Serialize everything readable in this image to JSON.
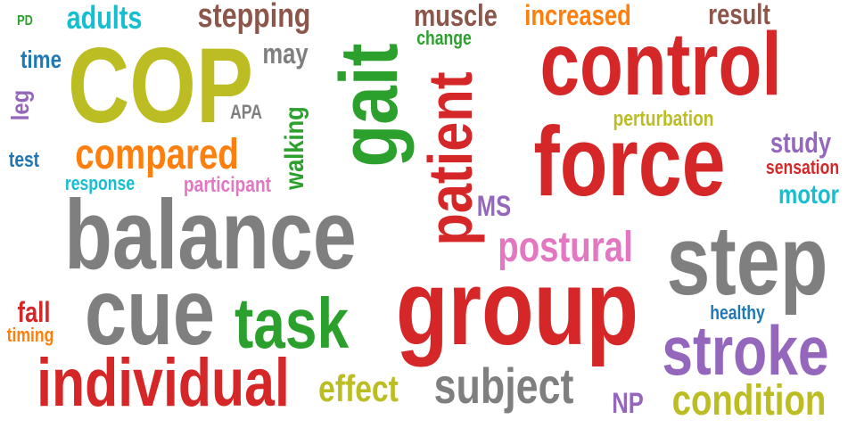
{
  "word_cloud": {
    "words": [
      {
        "text": "PD",
        "color": "#2ca02c",
        "orientation": "horizontal"
      },
      {
        "text": "adults",
        "color": "#17becf",
        "orientation": "horizontal"
      },
      {
        "text": "stepping",
        "color": "#8c564b",
        "orientation": "horizontal"
      },
      {
        "text": "muscle",
        "color": "#8c564b",
        "orientation": "horizontal"
      },
      {
        "text": "increased",
        "color": "#ff7f0e",
        "orientation": "horizontal"
      },
      {
        "text": "result",
        "color": "#8c564b",
        "orientation": "horizontal"
      },
      {
        "text": "time",
        "color": "#1f77b4",
        "orientation": "horizontal"
      },
      {
        "text": "COP",
        "color": "#bcbd22",
        "orientation": "horizontal"
      },
      {
        "text": "may",
        "color": "#7f7f7f",
        "orientation": "horizontal"
      },
      {
        "text": "change",
        "color": "#2ca02c",
        "orientation": "horizontal"
      },
      {
        "text": "control",
        "color": "#d62728",
        "orientation": "horizontal"
      },
      {
        "text": "gait",
        "color": "#2ca02c",
        "orientation": "vertical"
      },
      {
        "text": "leg",
        "color": "#9467bd",
        "orientation": "vertical"
      },
      {
        "text": "APA",
        "color": "#7f7f7f",
        "orientation": "horizontal"
      },
      {
        "text": "perturbation",
        "color": "#bcbd22",
        "orientation": "horizontal"
      },
      {
        "text": "patient",
        "color": "#d62728",
        "orientation": "vertical"
      },
      {
        "text": "walking",
        "color": "#2ca02c",
        "orientation": "vertical"
      },
      {
        "text": "study",
        "color": "#9467bd",
        "orientation": "horizontal"
      },
      {
        "text": "compared",
        "color": "#ff7f0e",
        "orientation": "horizontal"
      },
      {
        "text": "test",
        "color": "#1f77b4",
        "orientation": "horizontal"
      },
      {
        "text": "force",
        "color": "#d62728",
        "orientation": "horizontal"
      },
      {
        "text": "sensation",
        "color": "#d62728",
        "orientation": "horizontal"
      },
      {
        "text": "response",
        "color": "#17becf",
        "orientation": "horizontal"
      },
      {
        "text": "participant",
        "color": "#e377c2",
        "orientation": "horizontal"
      },
      {
        "text": "motor",
        "color": "#17becf",
        "orientation": "horizontal"
      },
      {
        "text": "MS",
        "color": "#9467bd",
        "orientation": "horizontal"
      },
      {
        "text": "balance",
        "color": "#7f7f7f",
        "orientation": "horizontal"
      },
      {
        "text": "postural",
        "color": "#e377c2",
        "orientation": "horizontal"
      },
      {
        "text": "step",
        "color": "#7f7f7f",
        "orientation": "horizontal"
      },
      {
        "text": "cue",
        "color": "#7f7f7f",
        "orientation": "horizontal"
      },
      {
        "text": "group",
        "color": "#d62728",
        "orientation": "horizontal"
      },
      {
        "text": "fall",
        "color": "#d62728",
        "orientation": "horizontal"
      },
      {
        "text": "task",
        "color": "#2ca02c",
        "orientation": "horizontal"
      },
      {
        "text": "healthy",
        "color": "#1f77b4",
        "orientation": "horizontal"
      },
      {
        "text": "timing",
        "color": "#ff7f0e",
        "orientation": "horizontal"
      },
      {
        "text": "stroke",
        "color": "#9467bd",
        "orientation": "horizontal"
      },
      {
        "text": "individual",
        "color": "#d62728",
        "orientation": "horizontal"
      },
      {
        "text": "effect",
        "color": "#bcbd22",
        "orientation": "horizontal"
      },
      {
        "text": "subject",
        "color": "#7f7f7f",
        "orientation": "horizontal"
      },
      {
        "text": "NP",
        "color": "#9467bd",
        "orientation": "horizontal"
      },
      {
        "text": "condition",
        "color": "#bcbd22",
        "orientation": "horizontal"
      }
    ]
  }
}
